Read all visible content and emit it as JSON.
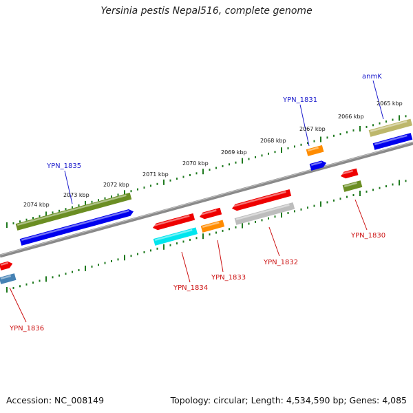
{
  "title": "Yersinia pestis Nepal516, complete genome",
  "footer": {
    "accession": "Accession: NC_008149",
    "summary": "Topology: circular; Length: 4,534,590 bp; Genes: 4,085"
  },
  "scale_labels": [
    "2074 kbp",
    "2073 kbp",
    "2072 kbp",
    "2071 kbp",
    "2070 kbp",
    "2069 kbp",
    "2068 kbp",
    "2067 kbp",
    "2066 kbp",
    "2065 kbp"
  ],
  "gene_labels": {
    "YPN_1835": "YPN_1835",
    "YPN_1831": "YPN_1831",
    "anmK": "anmK",
    "YPN_1834": "YPN_1834",
    "YPN_1833": "YPN_1833",
    "YPN_1832": "YPN_1832",
    "YPN_1830": "YPN_1830",
    "YPN_1836": "YPN_1836"
  },
  "colors": {
    "backbone": "#8a8a8a",
    "scale": "#1f7a1f",
    "label_top": "#1a1acc",
    "label_bottom": "#cc1111",
    "olive_green": "#6b8e23",
    "blue": "#0000ee",
    "red": "#ee0000",
    "orange": "#ff8c00",
    "cyan": "#00e5ee",
    "gray": "#bdbdbd",
    "khaki": "#bdb76b",
    "steel_blue": "#4682b4"
  }
}
